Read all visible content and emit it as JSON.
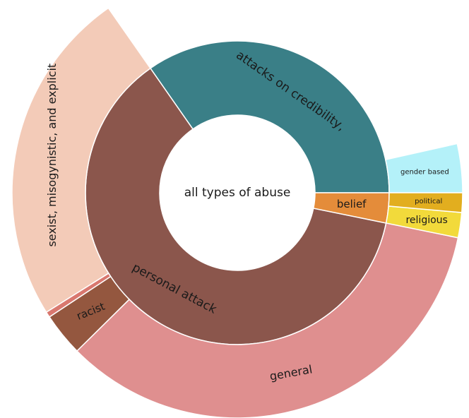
{
  "chart_data": {
    "type": "sunburst",
    "name": "all types of abuse",
    "children": [
      {
        "name": "attacks on credibility,",
        "color": "#3a7f87",
        "value": 34.7,
        "children": [
          {
            "name": "gender based",
            "color": "#b4f1f9",
            "value": 3.5
          }
        ]
      },
      {
        "name": "personal attack",
        "color": "#8b564c",
        "value": 62.1,
        "children": [
          {
            "name": "sexist, misogynistic, and explicit",
            "color": "#f3cbb8",
            "value": 24.2
          },
          {
            "name": null,
            "color": "#d9786f",
            "value": 0.4
          },
          {
            "name": "racist",
            "color": "#94573f",
            "value": 3.1
          },
          {
            "name": "general",
            "color": "#df8f8f",
            "value": 34.4
          }
        ]
      },
      {
        "name": "belief",
        "color": "#e48c3a",
        "value": 3.2,
        "children": [
          {
            "name": "religious",
            "color": "#f2da3b",
            "value": 1.8
          },
          {
            "name": "political",
            "color": "#e2ae1f",
            "value": 1.4
          }
        ]
      }
    ]
  }
}
